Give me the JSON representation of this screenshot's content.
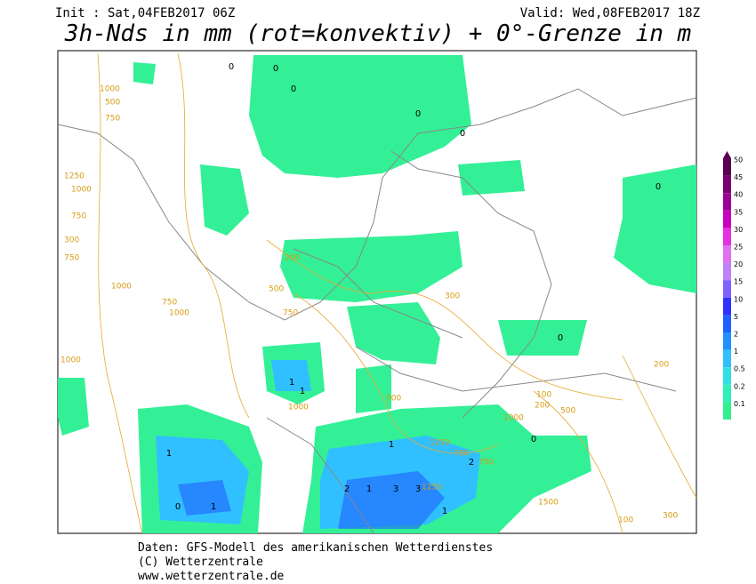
{
  "header": {
    "init": "Init : Sat,04FEB2017 06Z",
    "valid": "Valid: Wed,08FEB2017 18Z",
    "title": "3h-Nds in mm (rot=konvektiv) + 0°-Grenze in m"
  },
  "map": {
    "contour_labels": [
      "1000",
      "500",
      "750",
      "1250",
      "1000",
      "750",
      "300",
      "750",
      "1000",
      "750",
      "1000",
      "1000",
      "200",
      "500",
      "750",
      "300",
      "1000",
      "500",
      "100",
      "200",
      "500",
      "1000",
      "750",
      "1250",
      "750",
      "1250",
      "1500",
      "100",
      "300",
      "200"
    ],
    "precip_labels": [
      "0",
      "0",
      "0",
      "0",
      "0",
      "0",
      "1",
      "1",
      "1",
      "2",
      "1",
      "3",
      "3",
      "1",
      "2",
      "1",
      "0",
      "0",
      "0",
      "1"
    ]
  },
  "colorbar": {
    "levels": [
      {
        "label": "50",
        "color": "#5a0050"
      },
      {
        "label": "45",
        "color": "#7a0072"
      },
      {
        "label": "40",
        "color": "#9a0096"
      },
      {
        "label": "35",
        "color": "#c800c0"
      },
      {
        "label": "30",
        "color": "#e430e0"
      },
      {
        "label": "25",
        "color": "#e070f0"
      },
      {
        "label": "20",
        "color": "#c080f8"
      },
      {
        "label": "15",
        "color": "#8060ff"
      },
      {
        "label": "10",
        "color": "#3030ff"
      },
      {
        "label": "5",
        "color": "#2060ff"
      },
      {
        "label": "2",
        "color": "#2090ff"
      },
      {
        "label": "1",
        "color": "#30c0ff"
      },
      {
        "label": "0.5",
        "color": "#30e0e0"
      },
      {
        "label": "0.2",
        "color": "#30f0b8"
      },
      {
        "label": "0.1",
        "color": "#30f090"
      }
    ]
  },
  "footer": {
    "source": "Daten: GFS-Modell des amerikanischen Wetterdienstes",
    "copyright": "(C) Wetterzentrale",
    "url": "www.wetterzentrale.de"
  }
}
